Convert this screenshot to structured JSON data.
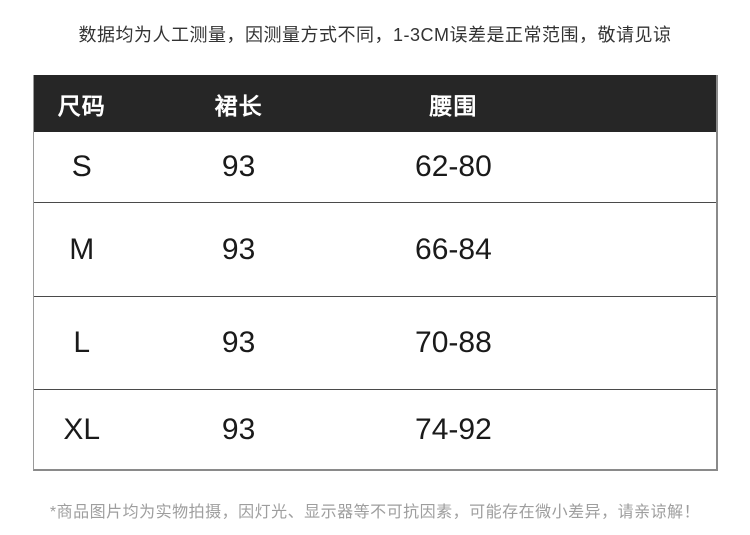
{
  "top_note": "数据均为人工测量，因测量方式不同，1-3CM误差是正常范围，敬请见谅",
  "bottom_note": "*商品图片均为实物拍摄，因灯光、显示器等不可抗因素，可能存在微小差异，请亲谅解！",
  "size_table": {
    "columns": [
      "尺码",
      "裙长",
      "腰围"
    ],
    "rows": [
      {
        "size": "S",
        "skirt_length": "93",
        "waist": "62-80"
      },
      {
        "size": "M",
        "skirt_length": "93",
        "waist": "66-84"
      },
      {
        "size": "L",
        "skirt_length": "93",
        "waist": "70-88"
      },
      {
        "size": "XL",
        "skirt_length": "93",
        "waist": "74-92"
      }
    ],
    "colors": {
      "header_background": "#262626",
      "header_text": "#ffffff",
      "outer_border": "#8a8a8a",
      "row_divider": "#4a4a4a",
      "data_text": "#1a1a1a",
      "top_note_text": "#333333",
      "bottom_note_text": "#9e9e9e",
      "page_background": "#ffffff"
    }
  }
}
